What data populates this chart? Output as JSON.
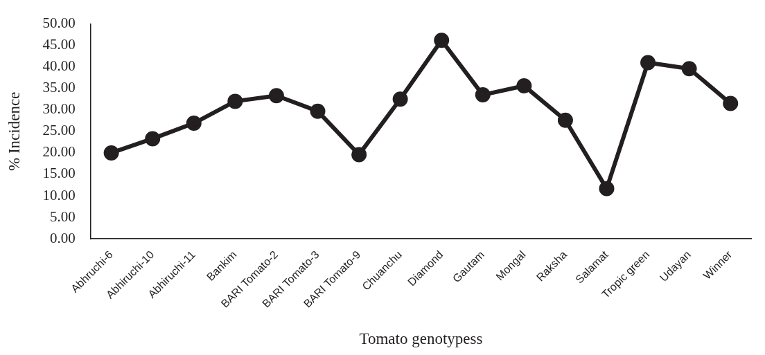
{
  "chart_data": {
    "type": "line",
    "xlabel": "Tomato genotypess",
    "ylabel": "% Incidence",
    "categories": [
      "Abhruchi-6",
      "Abhiruchi-10",
      "Abhiruchi-11",
      "Bankim",
      "BARI Tomato-2",
      "BARI Tomato-3",
      "BARI Tomato-9",
      "Chuanchu",
      "Diamond",
      "Gautam",
      "Mongal",
      "Raksha",
      "Salamat",
      "Tropic green",
      "Udayan",
      "Winner"
    ],
    "series": [
      {
        "color": "#231f20",
        "values": [
          20.0,
          23.3,
          26.9,
          32.0,
          33.3,
          29.7,
          19.6,
          32.5,
          46.2,
          33.5,
          35.6,
          27.6,
          11.7,
          41.0,
          39.6,
          31.5
        ]
      }
    ],
    "ylim": [
      0,
      50
    ],
    "yticks": [
      {
        "value": 0,
        "label": "0.00"
      },
      {
        "value": 5,
        "label": "5.00"
      },
      {
        "value": 10,
        "label": "10.00"
      },
      {
        "value": 15,
        "label": "15.00"
      },
      {
        "value": 20,
        "label": "20.00"
      },
      {
        "value": 25,
        "label": "25.00"
      },
      {
        "value": 30,
        "label": "30.00"
      },
      {
        "value": 35,
        "label": "35.00"
      },
      {
        "value": 40,
        "label": "40.00"
      },
      {
        "value": 45,
        "label": "45.00"
      },
      {
        "value": 50,
        "label": "50.00"
      }
    ],
    "grid": false,
    "legend": false,
    "marker": "circle",
    "line_style": "solid"
  }
}
